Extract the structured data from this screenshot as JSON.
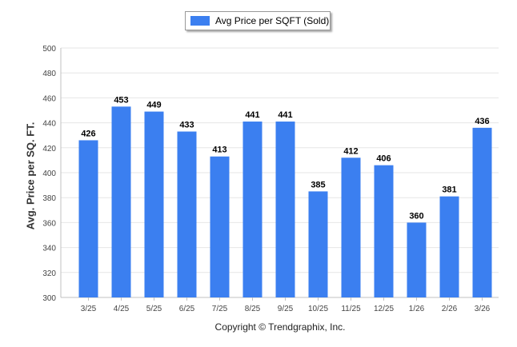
{
  "legend": {
    "label": "Avg Price per SQFT (Sold)"
  },
  "copyright": "Copyright © Trendgraphix, Inc.",
  "colors": {
    "bar": "#3b7ff0",
    "grid": "#e6e6e6",
    "axis": "#c0c0c0"
  },
  "chart_data": {
    "type": "bar",
    "title": "",
    "xlabel": "",
    "ylabel": "Avg. Price per SQ. FT.",
    "ylim": [
      300,
      500
    ],
    "yticks": [
      300,
      320,
      340,
      360,
      380,
      400,
      420,
      440,
      460,
      480,
      500
    ],
    "categories": [
      "3/25",
      "4/25",
      "5/25",
      "6/25",
      "7/25",
      "8/25",
      "9/25",
      "10/25",
      "11/25",
      "12/25",
      "1/26",
      "2/26",
      "3/26"
    ],
    "series": [
      {
        "name": "Avg Price per SQFT (Sold)",
        "values": [
          426,
          453,
          449,
          433,
          413,
          441,
          441,
          385,
          412,
          406,
          360,
          381,
          436
        ]
      }
    ],
    "legend_position": "top-center",
    "grid": true
  }
}
